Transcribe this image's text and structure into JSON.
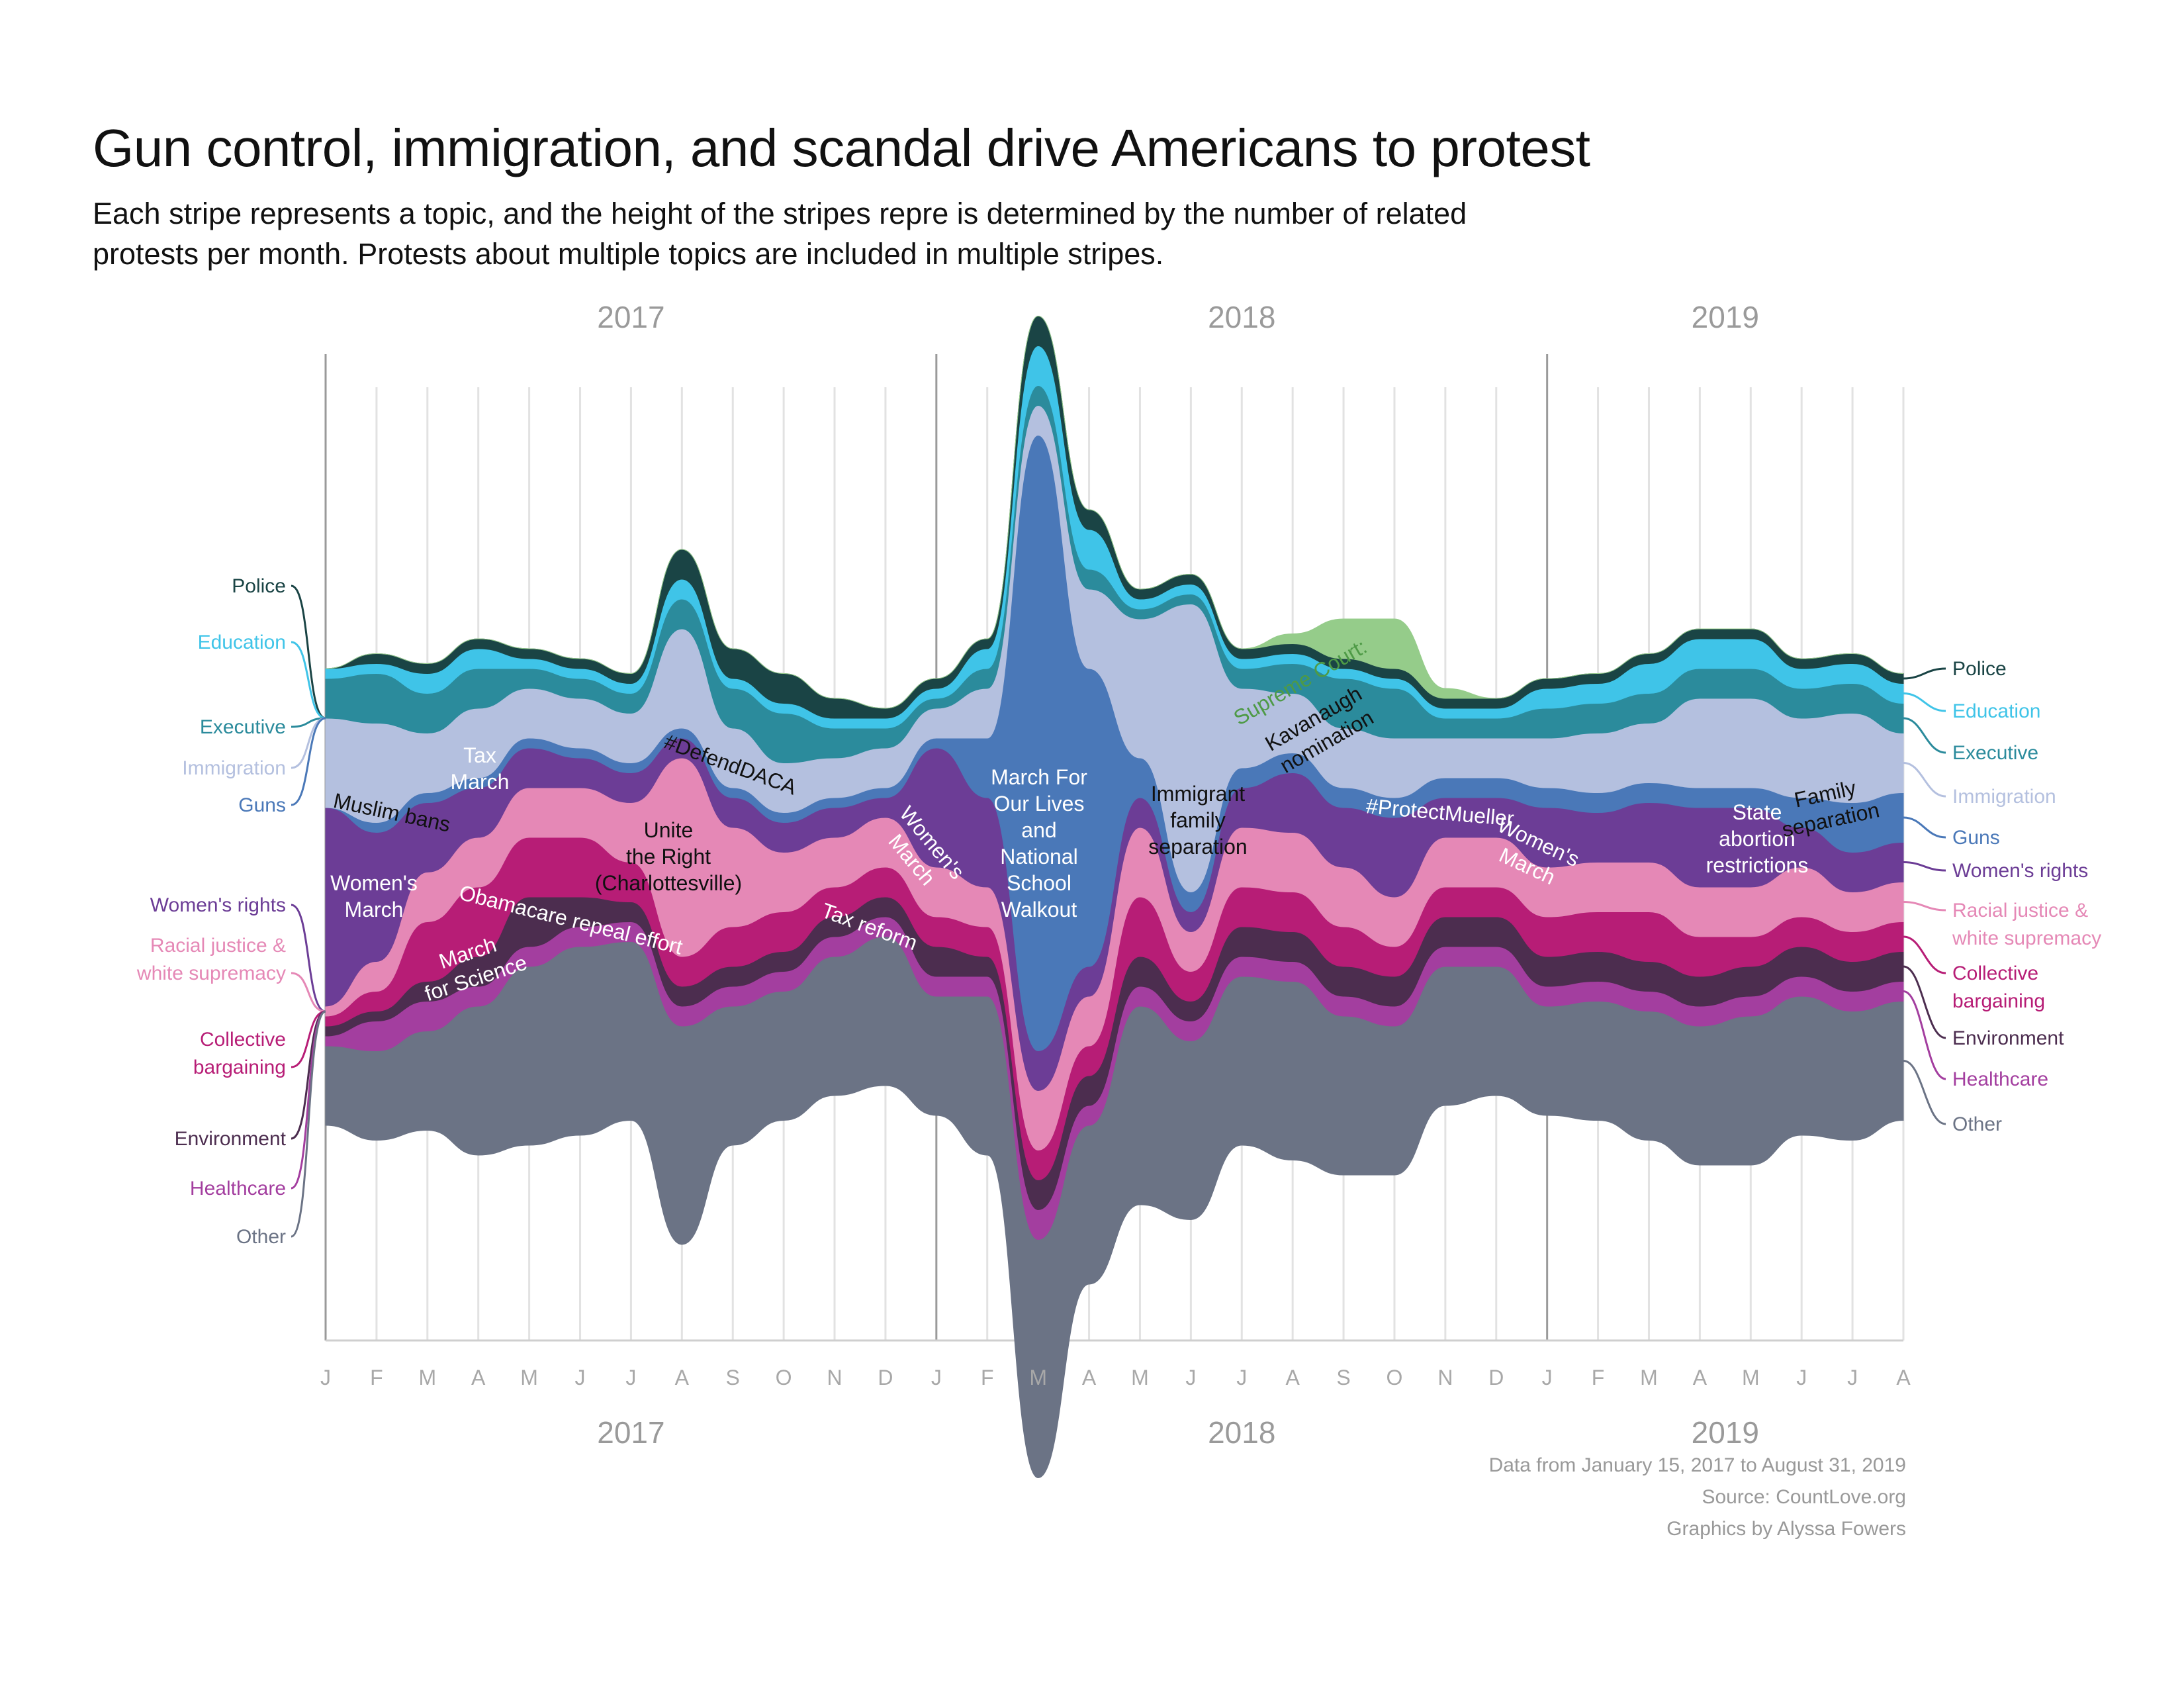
{
  "title": "Gun control, immigration, and scandal drive Americans to protest",
  "subtitle": "Each stripe represents a topic, and the height of the stripes repre is determined by the number of related protests  per month. Protests about multiple topics are included in multiple stripes.",
  "credits": {
    "data_range": "Data from January 15, 2017 to August 31, 2019",
    "source": "Source: CountLove.org",
    "graphics": "Graphics by Alyssa Fowers"
  },
  "chart_data": {
    "type": "area",
    "layout": "streamgraph",
    "x": [
      "2017-01",
      "2017-02",
      "2017-03",
      "2017-04",
      "2017-05",
      "2017-06",
      "2017-07",
      "2017-08",
      "2017-09",
      "2017-10",
      "2017-11",
      "2017-12",
      "2018-01",
      "2018-02",
      "2018-03",
      "2018-04",
      "2018-05",
      "2018-06",
      "2018-07",
      "2018-08",
      "2018-09",
      "2018-10",
      "2018-11",
      "2018-12",
      "2019-01",
      "2019-02",
      "2019-03",
      "2019-04",
      "2019-05",
      "2019-06",
      "2019-07",
      "2019-08"
    ],
    "month_labels": [
      "J",
      "F",
      "M",
      "A",
      "M",
      "J",
      "J",
      "A",
      "S",
      "O",
      "N",
      "D",
      "J",
      "F",
      "M",
      "A",
      "M",
      "J",
      "J",
      "A",
      "S",
      "O",
      "N",
      "D",
      "J",
      "F",
      "M",
      "A",
      "M",
      "J",
      "J",
      "A"
    ],
    "year_labels": [
      "2017",
      "2018",
      "2019"
    ],
    "grid": true,
    "legend": "left-and-right",
    "series": [
      {
        "name": "Other",
        "color": "#6b7385",
        "values": [
          8,
          9,
          10,
          15,
          18,
          19,
          18,
          22,
          14,
          13,
          14,
          15,
          12,
          16,
          24,
          16,
          20,
          18,
          17,
          18,
          16,
          15,
          14,
          13,
          11,
          12,
          13,
          14,
          15,
          14,
          13,
          12
        ]
      },
      {
        "name": "Healthcare",
        "color": "#a33e9f",
        "values": [
          1,
          3,
          3,
          2,
          2,
          2,
          2,
          2,
          2,
          2,
          2,
          2,
          2,
          2,
          3,
          2,
          2,
          2,
          2,
          2,
          2,
          2,
          2,
          2,
          2,
          2,
          2,
          2,
          2,
          2,
          2,
          2
        ]
      },
      {
        "name": "Environment",
        "color": "#4c2d4f",
        "values": [
          1,
          1,
          2,
          3,
          5,
          3,
          2,
          2,
          2,
          2,
          2,
          2,
          3,
          2,
          3,
          3,
          3,
          2,
          3,
          3,
          3,
          3,
          3,
          3,
          3,
          3,
          3,
          3,
          3,
          3,
          3,
          3
        ]
      },
      {
        "name": "Collective bargaining",
        "color": "#b71d76",
        "values": [
          1,
          2,
          6,
          7,
          6,
          6,
          4,
          3,
          4,
          4,
          3,
          3,
          3,
          3,
          3,
          3,
          6,
          3,
          4,
          4,
          4,
          3,
          3,
          3,
          4,
          4,
          5,
          4,
          3,
          3,
          3,
          3
        ]
      },
      {
        "name": "Racial justice & white supremacy",
        "color": "#e588b6",
        "values": [
          1,
          3,
          5,
          5,
          5,
          5,
          6,
          20,
          10,
          6,
          5,
          5,
          5,
          4,
          6,
          5,
          7,
          4,
          6,
          6,
          6,
          5,
          5,
          5,
          5,
          5,
          5,
          5,
          5,
          5,
          4,
          4
        ]
      },
      {
        "name": "Women's rights",
        "color": "#6c3d96",
        "values": [
          20,
          13,
          7,
          5,
          4,
          3,
          3,
          2,
          3,
          3,
          3,
          2,
          12,
          9,
          4,
          3,
          3,
          2,
          4,
          6,
          6,
          8,
          4,
          4,
          6,
          5,
          6,
          8,
          8,
          4,
          4,
          4
        ]
      },
      {
        "name": "Guns",
        "color": "#4a78b8",
        "values": [
          0,
          1,
          1,
          1,
          1,
          1,
          1,
          1,
          1,
          1,
          1,
          1,
          1,
          6,
          62,
          30,
          4,
          2,
          2,
          2,
          2,
          2,
          2,
          2,
          2,
          2,
          2,
          2,
          2,
          3,
          5,
          5
        ]
      },
      {
        "name": "Immigration",
        "color": "#b4c0df",
        "values": [
          9,
          10,
          6,
          7,
          5,
          5,
          5,
          10,
          6,
          5,
          4,
          4,
          3,
          5,
          3,
          8,
          14,
          29,
          8,
          6,
          6,
          6,
          4,
          4,
          5,
          6,
          6,
          9,
          9,
          8,
          9,
          6
        ]
      },
      {
        "name": "Executive",
        "color": "#2b8b9c",
        "values": [
          4,
          5,
          4,
          4,
          2,
          2,
          2,
          3,
          4,
          5,
          3,
          2,
          1,
          2,
          2,
          2,
          1,
          1,
          2,
          3,
          5,
          5,
          2,
          2,
          3,
          3,
          3,
          3,
          3,
          3,
          3,
          3
        ]
      },
      {
        "name": "Education",
        "color": "#3fc4e8",
        "values": [
          1,
          1,
          2,
          2,
          1,
          1,
          1,
          2,
          1,
          1,
          1,
          1,
          1,
          2,
          4,
          4,
          1,
          1,
          1,
          1,
          1,
          1,
          1,
          1,
          2,
          2,
          3,
          3,
          3,
          2,
          2,
          2
        ]
      },
      {
        "name": "Police",
        "color": "#1a4445",
        "values": [
          0,
          1,
          1,
          1,
          1,
          1,
          1,
          3,
          3,
          3,
          2,
          1,
          1,
          1,
          3,
          2,
          1,
          1,
          1,
          1,
          1,
          1,
          1,
          1,
          1,
          1,
          1,
          1,
          1,
          1,
          1,
          1
        ]
      },
      {
        "name": "Supreme Court",
        "color": "#95cc8a",
        "values": [
          0,
          0,
          0,
          0,
          0,
          0,
          0,
          0,
          0,
          0,
          0,
          0,
          0,
          0,
          0,
          0,
          0,
          0,
          0,
          1,
          4,
          5,
          1,
          0,
          0,
          0,
          0,
          0,
          0,
          0,
          0,
          0
        ]
      }
    ],
    "legend_left": [
      "Police",
      "Education",
      "Executive",
      "Immigration",
      "Guns",
      "Women's rights",
      "Racial justice & white supremacy",
      "Collective bargaining",
      "Environment",
      "Healthcare",
      "Other"
    ],
    "legend_right": [
      "Police",
      "Education",
      "Executive",
      "Immigration",
      "Guns",
      "Women's rights",
      "Racial justice & white supremacy",
      "Collective bargaining",
      "Environment",
      "Healthcare",
      "Other"
    ],
    "annotations": [
      "Muslim bans",
      "Women's March",
      "Tax March",
      "March for Science",
      "Obamacare repeal effort",
      "#DefendDACA",
      "Unite the Right (Charlottesville)",
      "Tax reform",
      "Women's March",
      "March For Our Lives and National School Walkout",
      "Immigrant family separation",
      "Supreme Court:",
      "Kavanaugh nomination",
      "#ProtectMueller",
      "Women's March",
      "State abortion restrictions",
      "Family separation"
    ]
  }
}
